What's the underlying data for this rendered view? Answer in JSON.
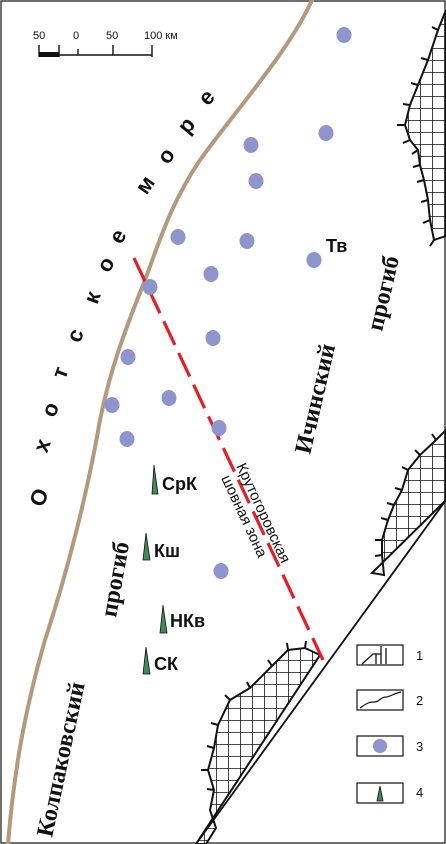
{
  "scale_bar": {
    "ticks": [
      "50",
      "0",
      "50",
      "100 км"
    ]
  },
  "sea_label": [
    "О",
    "х",
    "о",
    "т",
    "с",
    "к",
    "о",
    "е",
    " ",
    "м",
    "о",
    "р",
    "е"
  ],
  "troughs": {
    "ichinsky": [
      "Ичинский",
      "прогиб"
    ],
    "kolpakovsky": [
      "Колпаковский",
      "прогиб"
    ]
  },
  "fault_zone": {
    "line1": "Крутогоровская",
    "line2": "шовная зона"
  },
  "fields": [
    {
      "label": "СрК"
    },
    {
      "label": "Кш"
    },
    {
      "label": "НКв"
    },
    {
      "label": "СК"
    }
  ],
  "point_labels": {
    "tv": "Тв"
  },
  "legend": [
    {
      "num": "1",
      "symbol": "hatched-basement-edge"
    },
    {
      "num": "2",
      "symbol": "coastline"
    },
    {
      "num": "3",
      "symbol": "blue-point"
    },
    {
      "num": "4",
      "symbol": "green-triangle"
    }
  ],
  "colors": {
    "coast": "#b39a7e",
    "fault": "#e31e24",
    "point": "#8e94cc",
    "field_marker": "#3f8a5a",
    "hatch": "#111111"
  }
}
